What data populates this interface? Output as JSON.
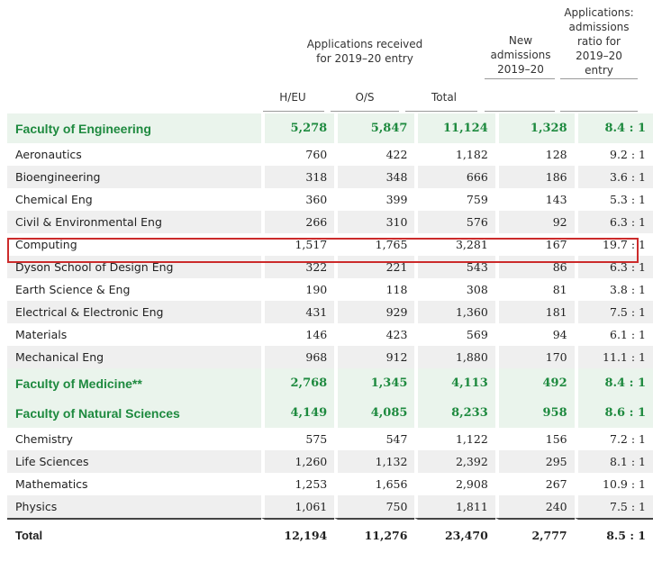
{
  "header": {
    "group_label": "Applications received\nfor 2019–20 entry",
    "col_heu": "H/EU",
    "col_os": "O/S",
    "col_total": "Total",
    "col_new": "New\nadmissions\n2019–20",
    "col_ratio": "Applications:\nadmissions\nratio for\n2019–20\nentry"
  },
  "rows": [
    {
      "type": "faculty",
      "name": "Faculty of Engineering",
      "heu": "5,278",
      "os": "5,847",
      "total": "11,124",
      "new": "1,328",
      "ratio": "8.4 : 1"
    },
    {
      "type": "dept",
      "name": "Aeronautics",
      "heu": "760",
      "os": "422",
      "total": "1,182",
      "new": "128",
      "ratio": "9.2 : 1"
    },
    {
      "type": "dept",
      "name": "Bioengineering",
      "heu": "318",
      "os": "348",
      "total": "666",
      "new": "186",
      "ratio": "3.6 : 1"
    },
    {
      "type": "dept",
      "name": "Chemical Eng",
      "heu": "360",
      "os": "399",
      "total": "759",
      "new": "143",
      "ratio": "5.3 : 1"
    },
    {
      "type": "dept",
      "name": "Civil & Environmental Eng",
      "heu": "266",
      "os": "310",
      "total": "576",
      "new": "92",
      "ratio": "6.3 : 1"
    },
    {
      "type": "dept",
      "name": "Computing",
      "heu": "1,517",
      "os": "1,765",
      "total": "3,281",
      "new": "167",
      "ratio": "19.7 : 1"
    },
    {
      "type": "dept",
      "name": "Dyson School of Design Eng",
      "heu": "322",
      "os": "221",
      "total": "543",
      "new": "86",
      "ratio": "6.3 : 1"
    },
    {
      "type": "dept",
      "name": "Earth Science & Eng",
      "heu": "190",
      "os": "118",
      "total": "308",
      "new": "81",
      "ratio": "3.8 : 1"
    },
    {
      "type": "dept",
      "name": "Electrical & Electronic Eng",
      "heu": "431",
      "os": "929",
      "total": "1,360",
      "new": "181",
      "ratio": "7.5 : 1"
    },
    {
      "type": "dept",
      "name": "Materials",
      "heu": "146",
      "os": "423",
      "total": "569",
      "new": "94",
      "ratio": "6.1 : 1"
    },
    {
      "type": "dept",
      "name": "Mechanical Eng",
      "heu": "968",
      "os": "912",
      "total": "1,880",
      "new": "170",
      "ratio": "11.1 : 1"
    },
    {
      "type": "faculty",
      "name": "Faculty of Medicine**",
      "heu": "2,768",
      "os": "1,345",
      "total": "4,113",
      "new": "492",
      "ratio": "8.4 : 1"
    },
    {
      "type": "faculty",
      "name": "Faculty of Natural Sciences",
      "heu": "4,149",
      "os": "4,085",
      "total": "8,233",
      "new": "958",
      "ratio": "8.6 : 1"
    },
    {
      "type": "dept",
      "name": "Chemistry",
      "heu": "575",
      "os": "547",
      "total": "1,122",
      "new": "156",
      "ratio": "7.2 : 1"
    },
    {
      "type": "dept",
      "name": "Life Sciences",
      "heu": "1,260",
      "os": "1,132",
      "total": "2,392",
      "new": "295",
      "ratio": "8.1 : 1"
    },
    {
      "type": "dept",
      "name": "Mathematics",
      "heu": "1,253",
      "os": "1,656",
      "total": "2,908",
      "new": "267",
      "ratio": "10.9 : 1"
    },
    {
      "type": "dept",
      "name": "Physics",
      "heu": "1,061",
      "os": "750",
      "total": "1,811",
      "new": "240",
      "ratio": "7.5 : 1"
    },
    {
      "type": "total",
      "name": "Total",
      "heu": "12,194",
      "os": "11,276",
      "total": "23,470",
      "new": "2,777",
      "ratio": "8.5 : 1"
    }
  ],
  "highlighted_row": "Computing",
  "colors": {
    "faculty_text": "#1e8a3f",
    "faculty_bg": "#eaf4ec",
    "row_shade": "#efefef",
    "highlight_border": "#cc2b2b"
  }
}
